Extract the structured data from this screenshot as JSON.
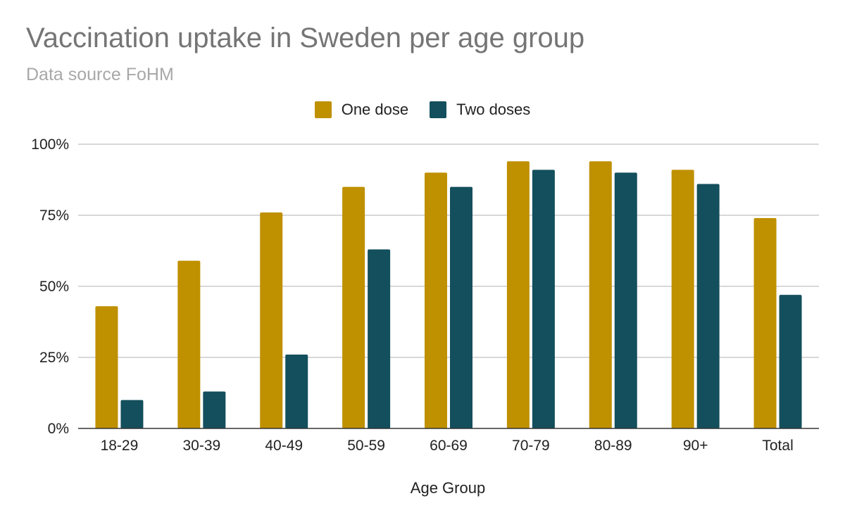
{
  "chart_data": {
    "type": "bar",
    "title": "Vaccination uptake in Sweden per age group",
    "subtitle": "Data source FoHM",
    "xlabel": "Age Group",
    "ylabel": "",
    "categories": [
      "18-29",
      "30-39",
      "40-49",
      "50-59",
      "60-69",
      "70-79",
      "80-89",
      "90+",
      "Total"
    ],
    "series": [
      {
        "name": "One dose",
        "color": "#bf9000",
        "values": [
          43,
          59,
          76,
          85,
          90,
          94,
          94,
          91,
          74
        ]
      },
      {
        "name": "Two doses",
        "color": "#134f5c",
        "values": [
          10,
          13,
          26,
          63,
          85,
          91,
          90,
          86,
          47
        ]
      }
    ],
    "ylim": [
      0,
      100
    ],
    "yticks": [
      0,
      25,
      50,
      75,
      100
    ],
    "ytick_labels": [
      "0%",
      "25%",
      "50%",
      "75%",
      "100%"
    ],
    "grid": true,
    "legend_position": "top"
  }
}
